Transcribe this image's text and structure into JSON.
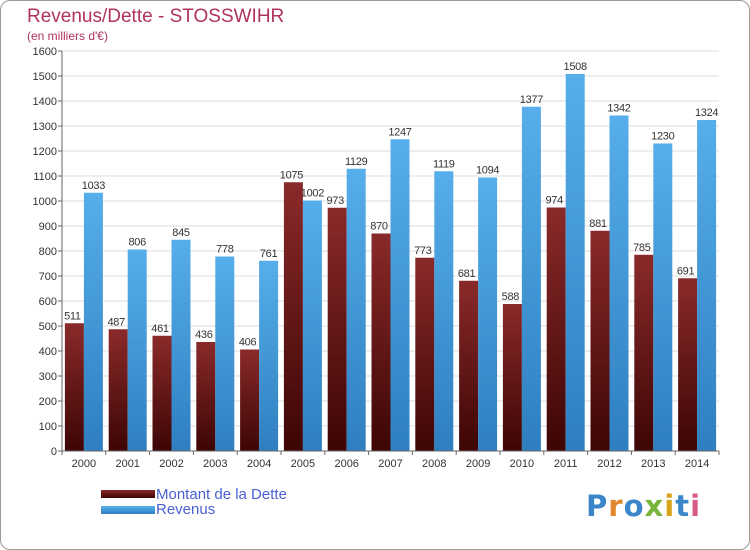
{
  "chart_data": {
    "type": "bar",
    "title": "Revenus/Dette - STOSSWIHR",
    "subtitle": "(en milliers d'€)",
    "categories": [
      "2000",
      "2001",
      "2002",
      "2003",
      "2004",
      "2005",
      "2006",
      "2007",
      "2008",
      "2009",
      "2010",
      "2011",
      "2012",
      "2013",
      "2014"
    ],
    "series": [
      {
        "name": "Montant de la Dette",
        "color": "#6e1a1a",
        "values": [
          511,
          487,
          461,
          436,
          406,
          1075,
          973,
          870,
          773,
          681,
          588,
          974,
          881,
          785,
          691
        ]
      },
      {
        "name": "Revenus",
        "color": "#4ea6e4",
        "values": [
          1033,
          806,
          845,
          778,
          761,
          1002,
          1129,
          1247,
          1119,
          1094,
          1377,
          1508,
          1342,
          1230,
          1324
        ]
      }
    ],
    "ylim": [
      0,
      1600
    ],
    "yticks": [
      0,
      100,
      200,
      300,
      400,
      500,
      600,
      700,
      800,
      900,
      1000,
      1100,
      1200,
      1300,
      1400,
      1500,
      1600
    ],
    "grid": true,
    "legend_position": "bottom-left"
  },
  "legend": {
    "debt_label": "Montant de la Dette",
    "revenue_label": "Revenus"
  },
  "logo": {
    "letters": [
      "P",
      "r",
      "o",
      "x",
      "i",
      "t",
      "i"
    ]
  }
}
